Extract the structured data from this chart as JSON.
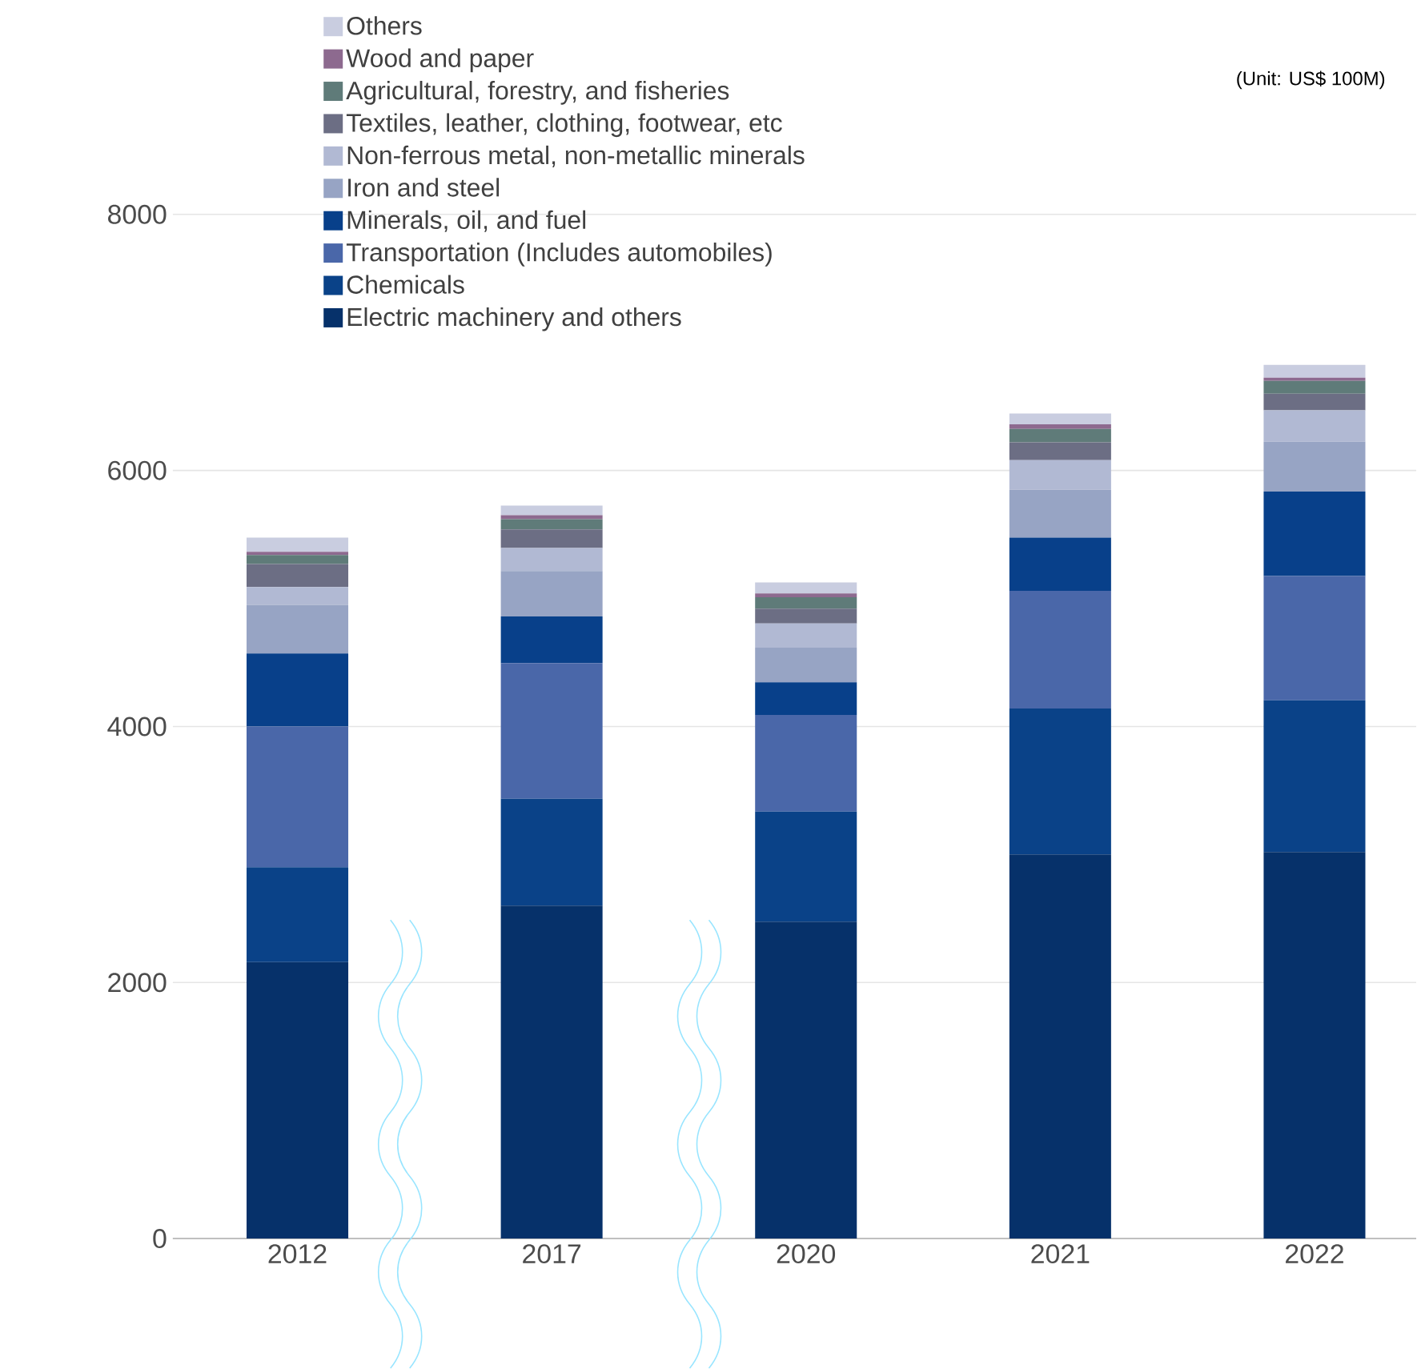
{
  "chart_data": {
    "type": "bar",
    "stacked": true,
    "categories": [
      "2012",
      "2017",
      "2020",
      "2021",
      "2022"
    ],
    "series": [
      {
        "name": "Electric machinery and others",
        "color": "#06316a",
        "values": [
          2160,
          2600,
          2475,
          3000,
          3020
        ]
      },
      {
        "name": "Chemicals",
        "color": "#0a4288",
        "values": [
          740,
          835,
          860,
          1140,
          1185
        ]
      },
      {
        "name": "Transportation (Includes automobiles)",
        "color": "#4a67a9",
        "values": [
          1100,
          1060,
          755,
          920,
          970
        ]
      },
      {
        "name": "Minerals, oil, and fuel",
        "color": "#08408a",
        "values": [
          570,
          365,
          255,
          415,
          660
        ]
      },
      {
        "name": "Iron and steel",
        "color": "#97a4c4",
        "values": [
          380,
          355,
          270,
          375,
          390
        ]
      },
      {
        "name": "Non-ferrous metal, non-metallic minerals",
        "color": "#b1b9d3",
        "values": [
          140,
          180,
          190,
          230,
          245
        ]
      },
      {
        "name": "Textiles, leather, clothing, footwear, etc",
        "color": "#6c6e84",
        "values": [
          180,
          145,
          115,
          140,
          130
        ]
      },
      {
        "name": "Agricultural, forestry, and fisheries",
        "color": "#5f7b79",
        "values": [
          70,
          80,
          90,
          105,
          100
        ]
      },
      {
        "name": "Wood and paper",
        "color": "#8d6a8f",
        "values": [
          25,
          30,
          30,
          35,
          25
        ]
      },
      {
        "name": "Others",
        "color": "#c9cde0",
        "values": [
          110,
          75,
          85,
          85,
          100
        ]
      }
    ],
    "ylim": [
      0,
      8000
    ],
    "yticks": [
      0,
      2000,
      4000,
      6000,
      8000
    ],
    "grid": "y",
    "legend": "top",
    "annotations": [
      "(Unit: US$ 100M)"
    ]
  }
}
